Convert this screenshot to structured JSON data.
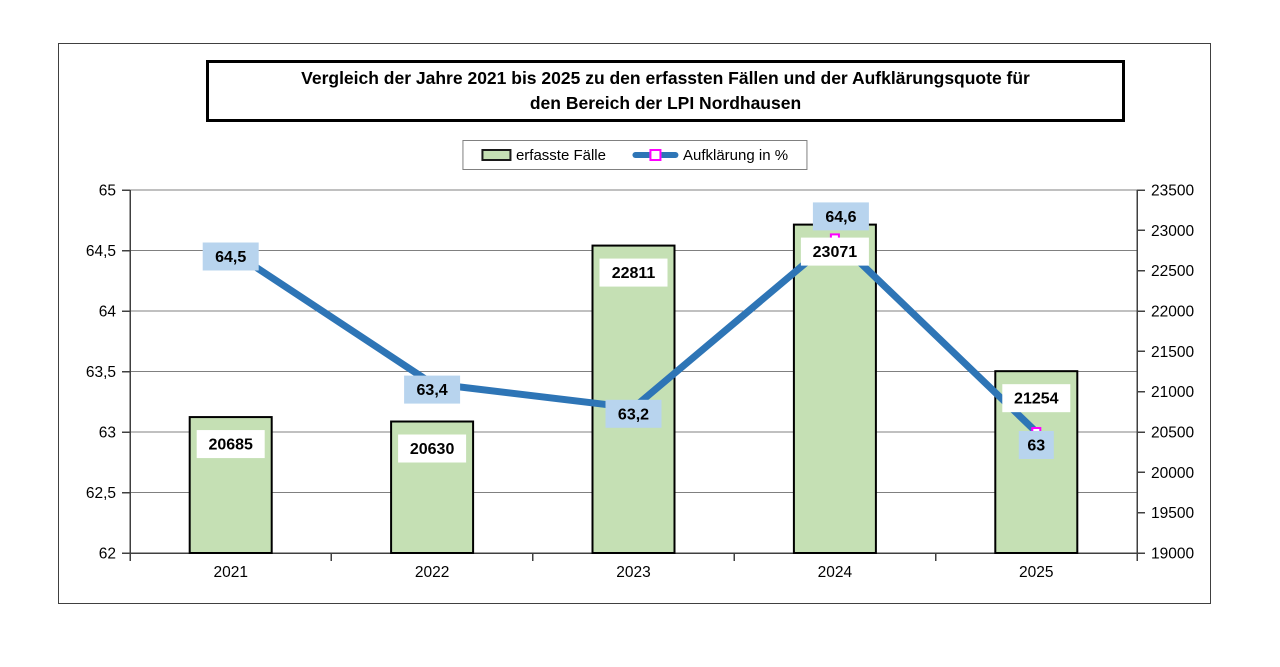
{
  "chart": {
    "title_lines": [
      "Vergleich der Jahre 2021 bis 2025 zu den erfassten Fällen und der Aufklärungsquote für",
      "den Bereich der LPI Nordhausen"
    ],
    "legend": [
      {
        "label": "erfasste Fälle",
        "swatch": "bar-swatch"
      },
      {
        "label": "Aufklärung in %",
        "swatch": "line-swatch"
      }
    ]
  },
  "chart_data": {
    "type": "combo",
    "title": "Vergleich der Jahre 2021 bis 2025 zu den erfassten Fällen und der Aufklärungsquote für den Bereich der LPI Nordhausen",
    "categories": [
      "2021",
      "2022",
      "2023",
      "2024",
      "2025"
    ],
    "series": [
      {
        "name": "erfasste Fälle",
        "type": "bar",
        "axis": "right",
        "values": [
          20685,
          20630,
          22811,
          23071,
          21254
        ],
        "labels": [
          "20685",
          "20630",
          "22811",
          "23071",
          "21254"
        ],
        "color": "#c5e0b4",
        "border_color": "#000000",
        "label_bg": "#ffffff"
      },
      {
        "name": "Aufklärung in %",
        "type": "line",
        "axis": "left",
        "values": [
          64.5,
          63.4,
          63.2,
          64.6,
          63
        ],
        "labels": [
          "64,5",
          "63,4",
          "63,2",
          "64,6",
          "63"
        ],
        "label_placement": [
          "center",
          "center",
          "center",
          "above",
          "below"
        ],
        "color": "#2e75b6",
        "marker_color": "#ff00ff",
        "label_bg": "#b8d4ee"
      }
    ],
    "left_axis": {
      "min": 62,
      "max": 65,
      "step": 0.5,
      "tick_labels": [
        "65",
        "64,5",
        "64",
        "63,5",
        "63",
        "62,5",
        "62"
      ]
    },
    "right_axis": {
      "min": 19000,
      "max": 23500,
      "step": 500,
      "tick_labels": [
        "23500",
        "23000",
        "22500",
        "22000",
        "21500",
        "21000",
        "20500",
        "20000",
        "19500",
        "19000"
      ]
    },
    "grid": true,
    "gridline_color": "#808080",
    "axis_color": "#404040",
    "legend_position": "top-center"
  }
}
